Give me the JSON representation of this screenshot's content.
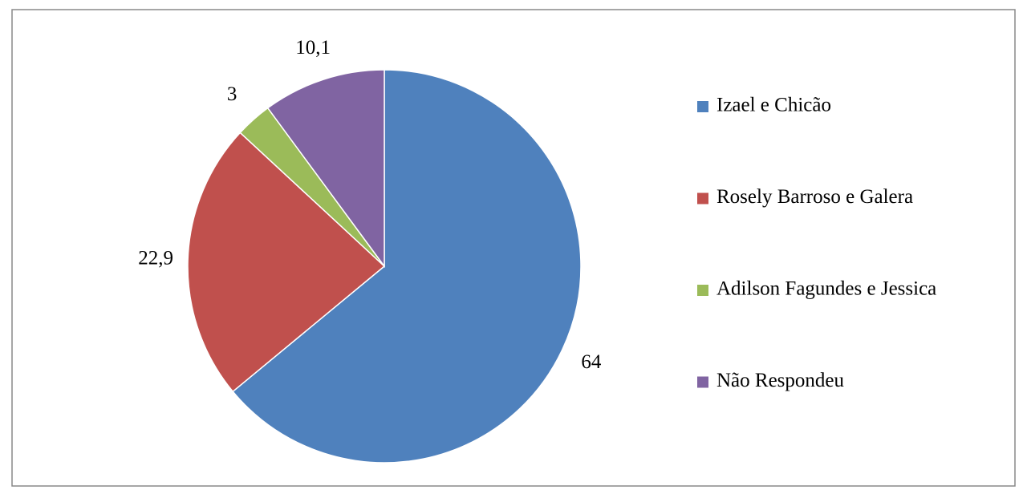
{
  "chart_data": {
    "type": "pie",
    "categories": [
      "Izael e Chicão",
      "Rosely Barroso e Galera",
      "Adilson Fagundes e Jessica",
      "Não Respondeu"
    ],
    "values": [
      64,
      22.9,
      3,
      10.1
    ],
    "value_labels": [
      "64",
      "22,9",
      "3",
      "10,1"
    ],
    "colors": [
      "#4f81bd",
      "#c0504d",
      "#9bbb59",
      "#8064a2"
    ],
    "legend": "right"
  }
}
